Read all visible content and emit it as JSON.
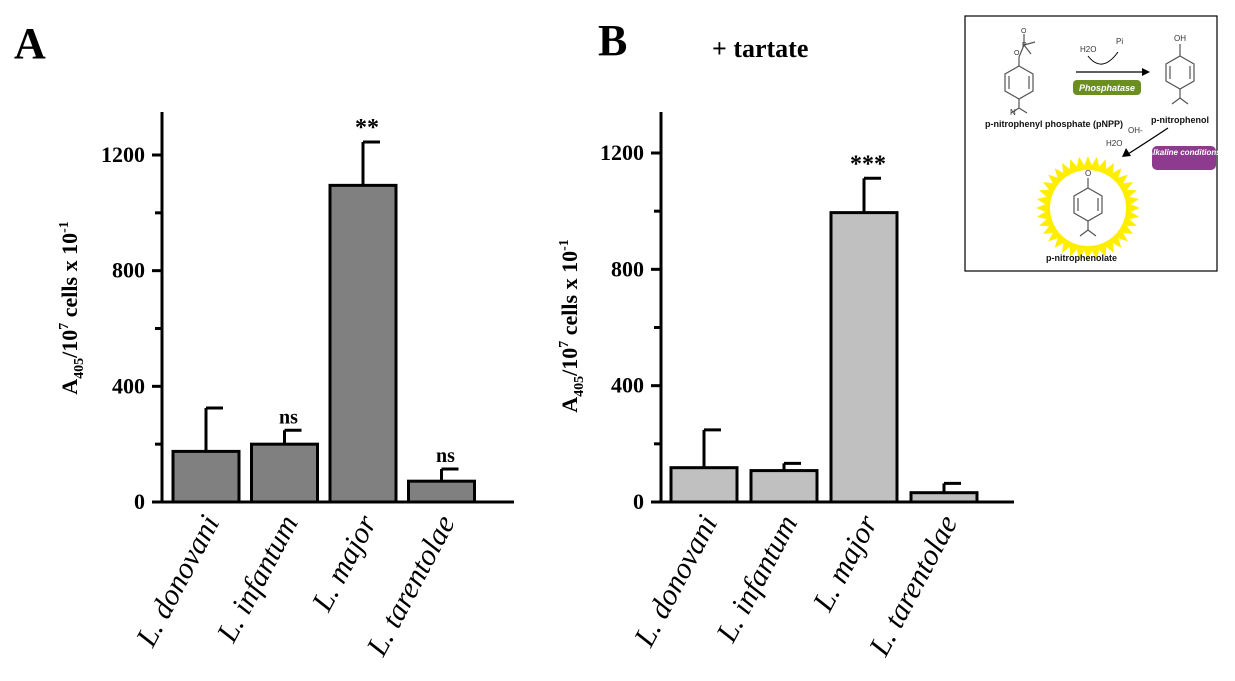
{
  "chart_data": [
    {
      "type": "bar",
      "panel_label": "A",
      "title": "",
      "ylabel_parts": [
        "A",
        "405",
        "/10",
        "7",
        " cells x 10",
        "-1"
      ],
      "yticks": [
        0,
        400,
        800,
        1200
      ],
      "ylim": [
        0,
        1340
      ],
      "categories": [
        "L. donovani",
        "L. infantum",
        "L. major",
        "L. tarentolae"
      ],
      "values": [
        175,
        200,
        1095,
        72
      ],
      "errors": [
        150,
        48,
        150,
        42
      ],
      "significance": [
        "",
        "ns",
        "**",
        "ns"
      ],
      "bar_color": "#808080",
      "grid": false
    },
    {
      "type": "bar",
      "panel_label": "B",
      "title": "+ tartate",
      "ylabel_parts": [
        "A",
        "405",
        "/10",
        "7",
        " cells x 10",
        "-1"
      ],
      "yticks": [
        0,
        400,
        800,
        1200
      ],
      "ylim": [
        0,
        1340
      ],
      "categories": [
        "L. donovani",
        "L. infantum",
        "L. major",
        "L. tarentolae"
      ],
      "values": [
        118,
        108,
        995,
        32
      ],
      "errors": [
        130,
        25,
        118,
        32
      ],
      "significance": [
        "",
        "",
        "***",
        ""
      ],
      "bar_color": "#c0c0c0",
      "grid": false
    }
  ],
  "inset": {
    "reactant": "p-nitrophenyl phosphate (pNPP)",
    "water": "H2O",
    "phosphate": "Pi",
    "enzyme": "Phosphatase",
    "product1": "p-nitrophenol",
    "hydroxide": "OH-",
    "water2": "H2O",
    "condition": "Alkaline conditions",
    "product2": "p-nitrophenolate",
    "enzyme_color": "#6b8e23",
    "condition_color": "#8e3a8e",
    "glow_color": "#ffee00"
  }
}
